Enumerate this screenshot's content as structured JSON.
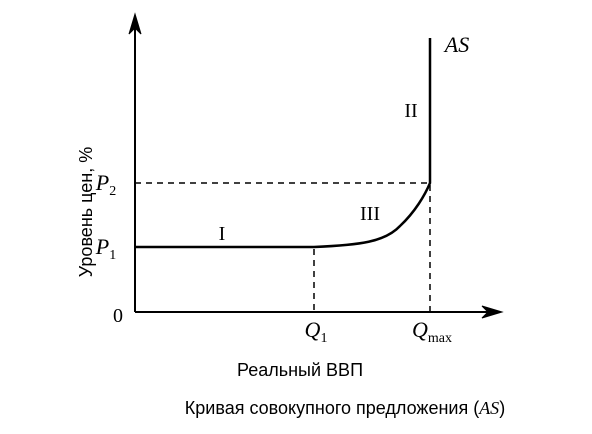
{
  "axes": {
    "y_label": "Уровень цен, %",
    "x_label": "Реальный ВВП",
    "origin": "0"
  },
  "y_ticks": [
    {
      "main": "P",
      "sub": "1"
    },
    {
      "main": "P",
      "sub": "2"
    }
  ],
  "x_ticks": [
    {
      "main": "Q",
      "sub": "1"
    },
    {
      "main": "Q",
      "sub": "max"
    }
  ],
  "regions": [
    "I",
    "II",
    "III"
  ],
  "curve_label": "AS",
  "caption": [
    "Кривая совокупного предложения (",
    "AS",
    ")"
  ]
}
